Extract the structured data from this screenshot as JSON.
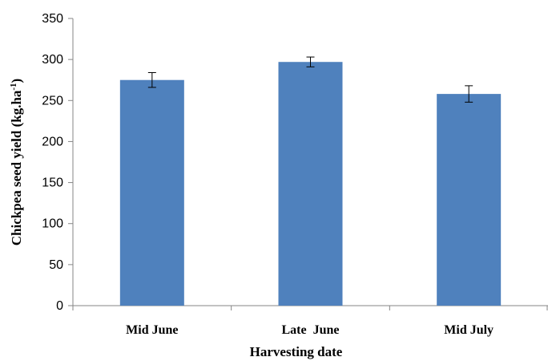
{
  "chart_data": {
    "type": "bar",
    "categories": [
      "Mid June",
      "Late  June",
      "Mid July"
    ],
    "values": [
      275,
      297,
      258
    ],
    "error": [
      9,
      6,
      10
    ],
    "ylim": [
      0,
      350
    ],
    "yticks": [
      0,
      50,
      100,
      150,
      200,
      250,
      300,
      350
    ],
    "xlabel": "Harvesting date",
    "ylabel_main": "Chickpea seed yield (kg.ha",
    "ylabel_sup": "-1",
    "ylabel_end": ")",
    "grid": false,
    "legend": "none",
    "bar_color": "#4F81BD",
    "axis_color": "#868686",
    "errorbar_color": "#000000"
  }
}
